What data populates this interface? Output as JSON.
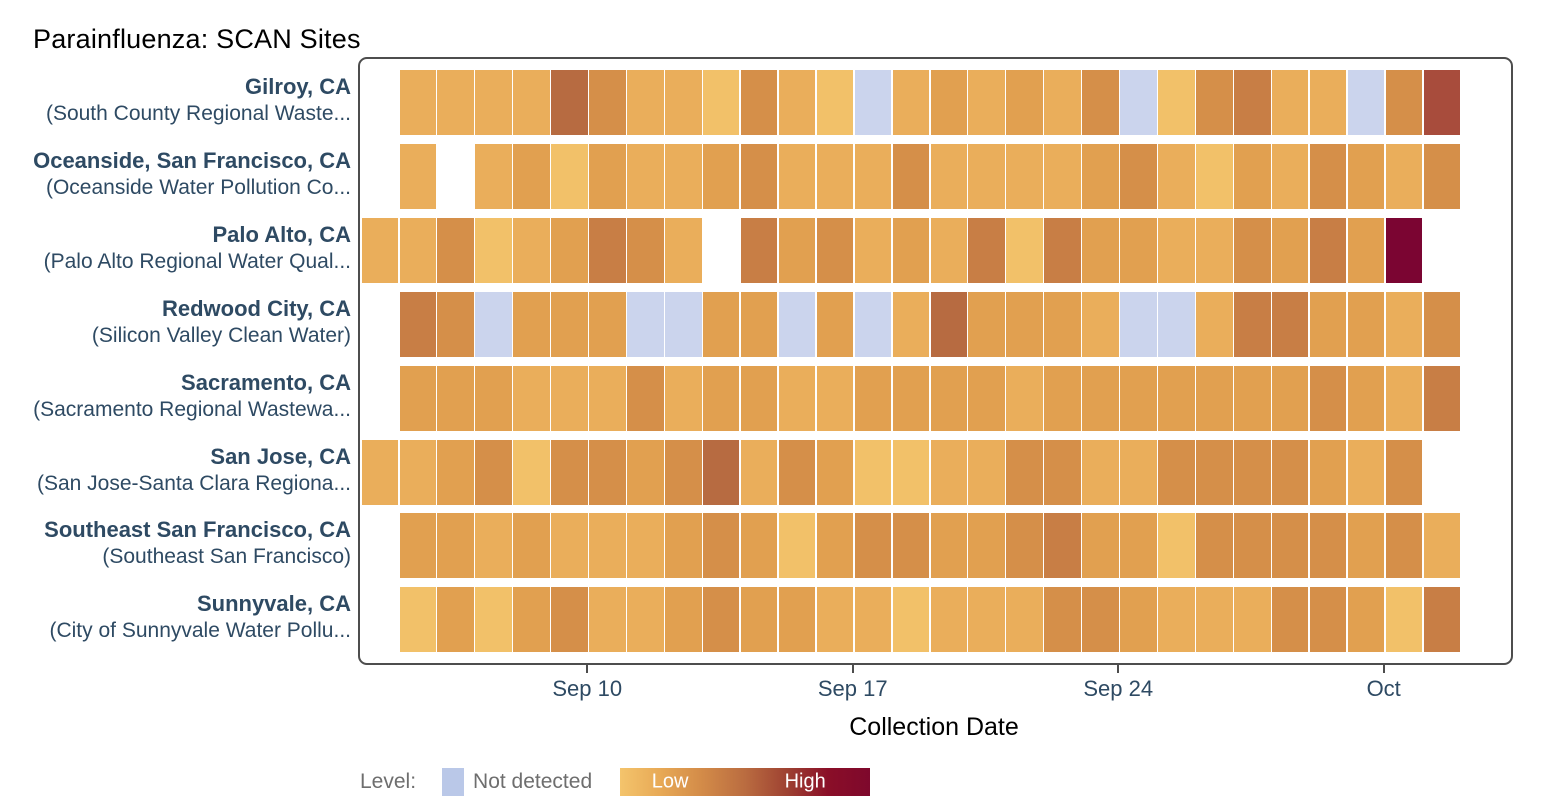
{
  "title": "Parainfluenza: SCAN Sites",
  "x_axis": {
    "title": "Collection Date",
    "ticks": [
      {
        "label": "Sep 10",
        "day": 6
      },
      {
        "label": "Sep 17",
        "day": 13
      },
      {
        "label": "Sep 24",
        "day": 20
      },
      {
        "label": "Oct",
        "day": 27
      }
    ]
  },
  "legend": {
    "prefix": "Level:",
    "not_detected_label": "Not detected",
    "low_label": "Low",
    "high_label": "High",
    "not_detected_color": "#bac8e8",
    "gradient": [
      "#F4C46C",
      "#E7A855",
      "#D28A48",
      "#BA6C40",
      "#9E4232",
      "#8A0E28",
      "#7E082C"
    ]
  },
  "colors": {
    "title_text": "#000000",
    "label_text": "#2e4a63",
    "axis_text": "#2e4a63",
    "legend_text": "#6e6e6e",
    "panel_border": "#4d4d4d"
  },
  "chart_data": {
    "type": "heatmap",
    "x_unit": "day",
    "x_start_date": "Sep 4",
    "days_per_row": 28,
    "note_tokens": "1-8 = increasing level (Low to High), nd = Not detected, 0 = no sample (white gap)",
    "palette": {
      "1": "#F2C169",
      "2": "#EAAE5B",
      "3": "#E1A050",
      "4": "#D58F49",
      "5": "#C87E45",
      "6": "#B76B41",
      "7": "#A84C3C",
      "8": "#7B0532",
      "nd": "#CBD4ED"
    },
    "sites": [
      {
        "name": "Gilroy, CA",
        "facility": "(South County Regional Waste...",
        "start_day": 1,
        "cells": [
          2,
          2,
          2,
          2,
          6,
          4,
          2,
          2,
          1,
          4,
          2,
          1,
          "nd",
          2,
          3,
          2,
          3,
          2,
          4,
          "nd",
          1,
          4,
          5,
          2,
          2,
          "nd",
          4,
          7
        ]
      },
      {
        "name": "Oceanside, San Francisco, CA",
        "facility": "(Oceanside Water Pollution Co...",
        "start_day": 1,
        "cells": [
          2,
          0,
          2,
          3,
          1,
          3,
          2,
          2,
          3,
          4,
          2,
          2,
          2,
          4,
          2,
          2,
          2,
          2,
          3,
          4,
          2,
          1,
          3,
          2,
          4,
          3,
          2,
          4
        ]
      },
      {
        "name": "Palo Alto, CA",
        "facility": "(Palo Alto Regional Water Qual...",
        "start_day": 0,
        "cells": [
          2,
          2,
          4,
          1,
          2,
          3,
          5,
          4,
          2,
          0,
          5,
          3,
          4,
          2,
          3,
          2,
          5,
          1,
          5,
          3,
          3,
          2,
          2,
          4,
          3,
          5,
          3,
          8
        ]
      },
      {
        "name": "Redwood City, CA",
        "facility": "(Silicon Valley Clean Water)",
        "start_day": 1,
        "cells": [
          5,
          4,
          "nd",
          3,
          3,
          3,
          "nd",
          "nd",
          3,
          3,
          "nd",
          3,
          "nd",
          2,
          6,
          3,
          3,
          3,
          2,
          "nd",
          "nd",
          2,
          5,
          5,
          3,
          3,
          2,
          4
        ]
      },
      {
        "name": "Sacramento, CA",
        "facility": "(Sacramento Regional Wastewa...",
        "start_day": 1,
        "cells": [
          3,
          3,
          3,
          2,
          2,
          2,
          4,
          2,
          3,
          3,
          2,
          2,
          3,
          3,
          3,
          3,
          2,
          3,
          3,
          3,
          3,
          3,
          3,
          3,
          4,
          3,
          2,
          5
        ]
      },
      {
        "name": "San Jose, CA",
        "facility": "(San Jose-Santa Clara Regiona...",
        "start_day": 0,
        "cells": [
          2,
          2,
          3,
          4,
          1,
          4,
          4,
          3,
          4,
          6,
          2,
          4,
          3,
          1,
          1,
          2,
          2,
          4,
          4,
          2,
          2,
          4,
          4,
          4,
          4,
          3,
          2,
          4
        ]
      },
      {
        "name": "Southeast San Francisco, CA",
        "facility": "(Southeast San Francisco)",
        "start_day": 1,
        "cells": [
          3,
          3,
          2,
          3,
          2,
          2,
          2,
          3,
          4,
          3,
          1,
          3,
          4,
          4,
          3,
          3,
          4,
          5,
          3,
          3,
          1,
          4,
          4,
          4,
          4,
          3,
          4,
          2
        ]
      },
      {
        "name": "Sunnyvale, CA",
        "facility": "(City of Sunnyvale Water Pollu...",
        "start_day": 1,
        "cells": [
          1,
          3,
          1,
          3,
          4,
          2,
          2,
          3,
          4,
          3,
          3,
          2,
          2,
          1,
          2,
          2,
          2,
          4,
          4,
          3,
          2,
          2,
          2,
          4,
          4,
          3,
          1,
          5
        ]
      }
    ]
  }
}
